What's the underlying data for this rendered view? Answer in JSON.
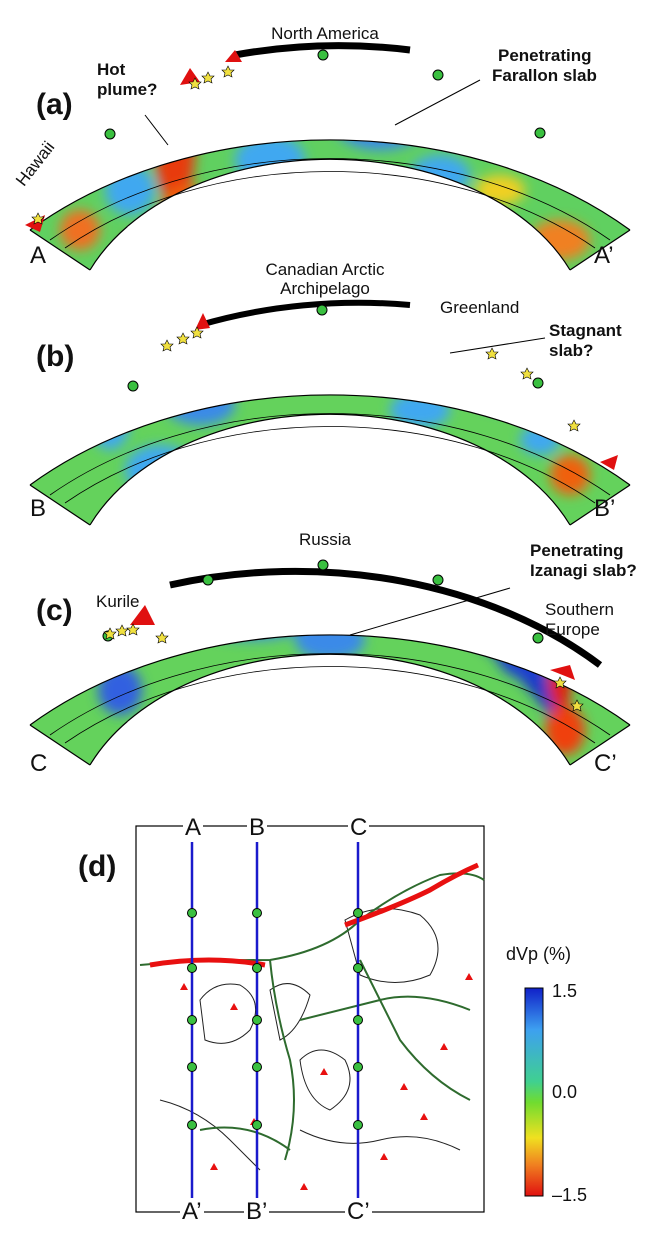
{
  "panels": {
    "a": {
      "label": "(a)",
      "start": "A",
      "end": "A’",
      "annotations": {
        "region": "North America",
        "hotspot": "Hawaii",
        "plume_line1": "Hot",
        "plume_line2": "plume?",
        "slab_line1": "Penetrating",
        "slab_line2": "Farallon slab"
      }
    },
    "b": {
      "label": "(b)",
      "start": "B",
      "end": "B’",
      "annotations": {
        "region_line1": "Canadian Arctic",
        "region_line2": "Archipelago",
        "region2": "Greenland",
        "slab_line1": "Stagnant",
        "slab_line2": "slab?"
      }
    },
    "c": {
      "label": "(c)",
      "start": "C",
      "end": "C’",
      "annotations": {
        "region": "Russia",
        "region2": "Kurile",
        "slab_line1": "Penetrating",
        "slab_line2": "Izanagi slab?",
        "region3_line1": "Southern",
        "region3_line2": "Europe"
      }
    },
    "d": {
      "label": "(d)",
      "top_labels": [
        "A",
        "B",
        "C"
      ],
      "bottom_labels": [
        "A’",
        "B’",
        "C’"
      ]
    }
  },
  "colorbar": {
    "title": "dVp (%)",
    "ticks": [
      "1.5",
      "0.0",
      "–1.5"
    ],
    "colors": [
      "#1020c8",
      "#3da0f0",
      "#40d090",
      "#70dc30",
      "#f0e020",
      "#f08020",
      "#e01010"
    ]
  }
}
